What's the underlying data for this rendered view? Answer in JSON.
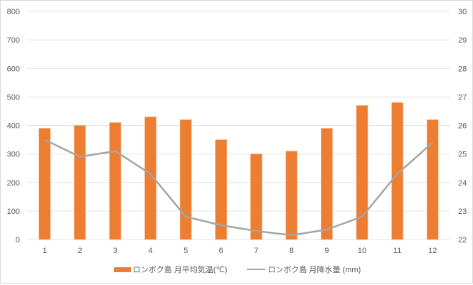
{
  "chart_data": {
    "type": "bar+line",
    "title": "",
    "categories": [
      "1",
      "2",
      "3",
      "4",
      "5",
      "6",
      "7",
      "8",
      "9",
      "10",
      "11",
      "12"
    ],
    "series": [
      {
        "name": "ロンボク島 月平均気温(℃)",
        "kind": "bar",
        "axis": "left",
        "color": "#ED7D31",
        "values": [
          390,
          400,
          410,
          430,
          420,
          350,
          300,
          310,
          390,
          470,
          480,
          420
        ]
      },
      {
        "name": "ロンボク島 月降水量 (mm)",
        "kind": "line",
        "axis": "right",
        "color": "#A5A5A5",
        "values": [
          25.5,
          24.9,
          25.1,
          24.3,
          22.8,
          22.5,
          22.3,
          22.15,
          22.35,
          22.8,
          24.3,
          25.4
        ]
      }
    ],
    "left_axis": {
      "ylim": [
        0,
        800
      ],
      "ticks": [
        "0",
        "100",
        "200",
        "300",
        "400",
        "500",
        "600",
        "700",
        "800"
      ]
    },
    "right_axis": {
      "ylim": [
        22,
        30
      ],
      "ticks": [
        "22",
        "23",
        "24",
        "25",
        "26",
        "27",
        "28",
        "29",
        "30"
      ]
    },
    "xlabel": "",
    "ylabel": "",
    "grid": true,
    "legend_position": "bottom"
  },
  "legend": {
    "bar_label": "ロンボク島 月平均気温(℃)",
    "line_label": "ロンボク島 月降水量 (mm)"
  }
}
